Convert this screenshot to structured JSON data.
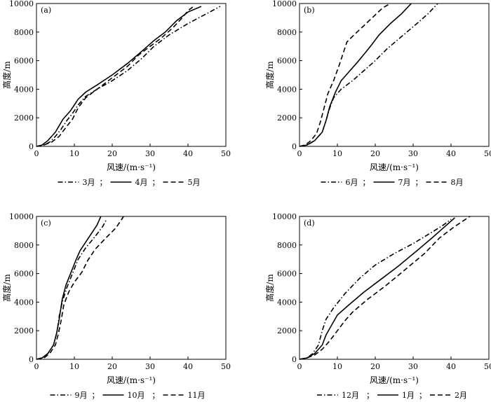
{
  "chart_data": [
    {
      "type": "line",
      "panel_label": "(a)",
      "xlabel": "风速/(m·s⁻¹)",
      "ylabel": "高度/m",
      "xlim": [
        0,
        50
      ],
      "ylim": [
        0,
        10000
      ],
      "x_ticks": [
        "0",
        "10",
        "20",
        "30",
        "40",
        "50"
      ],
      "y_ticks": [
        "0",
        "2000",
        "4000",
        "6000",
        "8000",
        "10000"
      ],
      "legend": "top-of-panel-below",
      "legend_separator": "；",
      "series": [
        {
          "name": "3月",
          "dash": "dashdot",
          "points": [
            [
              0,
              0
            ],
            [
              2,
              100
            ],
            [
              3.5,
              300
            ],
            [
              5,
              700
            ],
            [
              6.5,
              1200
            ],
            [
              8,
              1800
            ],
            [
              9.5,
              2300
            ],
            [
              11,
              2900
            ],
            [
              13,
              3500
            ],
            [
              16,
              4000
            ],
            [
              20,
              4600
            ],
            [
              24,
              5300
            ],
            [
              28,
              6200
            ],
            [
              31,
              7000
            ],
            [
              35,
              7800
            ],
            [
              40,
              8600
            ],
            [
              45,
              9300
            ],
            [
              48.5,
              9800
            ]
          ]
        },
        {
          "name": "4月",
          "dash": "solid",
          "points": [
            [
              0,
              0
            ],
            [
              1.5,
              100
            ],
            [
              3,
              400
            ],
            [
              5,
              1000
            ],
            [
              7,
              1900
            ],
            [
              9,
              2500
            ],
            [
              11,
              3300
            ],
            [
              13,
              3800
            ],
            [
              16,
              4300
            ],
            [
              20,
              5000
            ],
            [
              24,
              5800
            ],
            [
              28,
              6700
            ],
            [
              31,
              7400
            ],
            [
              34,
              8000
            ],
            [
              37,
              8800
            ],
            [
              40,
              9400
            ],
            [
              43.5,
              9800
            ]
          ]
        },
        {
          "name": "5月",
          "dash": "dashed",
          "points": [
            [
              0,
              0
            ],
            [
              2,
              100
            ],
            [
              4,
              300
            ],
            [
              6,
              700
            ],
            [
              8,
              1400
            ],
            [
              9.5,
              1900
            ],
            [
              11,
              2700
            ],
            [
              13,
              3400
            ],
            [
              16,
              4000
            ],
            [
              20,
              4800
            ],
            [
              24,
              5600
            ],
            [
              27,
              6400
            ],
            [
              30,
              7000
            ],
            [
              33,
              7600
            ],
            [
              36,
              8300
            ],
            [
              38.5,
              9000
            ],
            [
              40,
              9500
            ],
            [
              41.5,
              9800
            ]
          ]
        }
      ]
    },
    {
      "type": "line",
      "panel_label": "(b)",
      "xlabel": "风速/(m·s⁻¹)",
      "ylabel": "高度/m",
      "xlim": [
        0,
        50
      ],
      "ylim": [
        0,
        10000
      ],
      "x_ticks": [
        "0",
        "10",
        "20",
        "30",
        "40",
        "50"
      ],
      "y_ticks": [
        "0",
        "2000",
        "4000",
        "6000",
        "8000",
        "10000"
      ],
      "legend": "top-of-panel-below",
      "legend_separator": "；",
      "series": [
        {
          "name": "6月",
          "dash": "dashdot",
          "points": [
            [
              0,
              0
            ],
            [
              2,
              100
            ],
            [
              4,
              400
            ],
            [
              6,
              1000
            ],
            [
              7,
              1800
            ],
            [
              8,
              2700
            ],
            [
              9,
              3400
            ],
            [
              11,
              4000
            ],
            [
              14,
              4600
            ],
            [
              17,
              5300
            ],
            [
              20,
              6000
            ],
            [
              23,
              6800
            ],
            [
              27,
              7700
            ],
            [
              31,
              8600
            ],
            [
              34,
              9300
            ],
            [
              36.5,
              10000
            ]
          ]
        },
        {
          "name": "7月",
          "dash": "solid",
          "points": [
            [
              0,
              0
            ],
            [
              2,
              100
            ],
            [
              4,
              400
            ],
            [
              6,
              1000
            ],
            [
              7,
              1800
            ],
            [
              8,
              2800
            ],
            [
              9.5,
              3800
            ],
            [
              11,
              4600
            ],
            [
              13,
              5200
            ],
            [
              15,
              5800
            ],
            [
              17.5,
              6600
            ],
            [
              19,
              7100
            ],
            [
              21,
              7800
            ],
            [
              24,
              8600
            ],
            [
              27,
              9300
            ],
            [
              29.5,
              10000
            ]
          ]
        },
        {
          "name": "8月",
          "dash": "dashed",
          "points": [
            [
              0,
              0
            ],
            [
              1.5,
              100
            ],
            [
              3,
              400
            ],
            [
              4.5,
              900
            ],
            [
              5.5,
              1700
            ],
            [
              6.5,
              2700
            ],
            [
              7.5,
              3700
            ],
            [
              9,
              4600
            ],
            [
              10.5,
              5700
            ],
            [
              11.5,
              6500
            ],
            [
              12.5,
              7300
            ],
            [
              14,
              7700
            ],
            [
              16,
              8200
            ],
            [
              18,
              8700
            ],
            [
              20,
              9200
            ],
            [
              22,
              9700
            ],
            [
              24,
              10000
            ]
          ]
        }
      ]
    },
    {
      "type": "line",
      "panel_label": "(c)",
      "xlabel": "风速/(m·s⁻¹)",
      "ylabel": "高度/m",
      "xlim": [
        0,
        50
      ],
      "ylim": [
        0,
        10000
      ],
      "x_ticks": [
        "0",
        "10",
        "20",
        "30",
        "40",
        "50"
      ],
      "y_ticks": [
        "0",
        "2000",
        "4000",
        "6000",
        "8000",
        "10000"
      ],
      "legend": "top-of-panel-below",
      "legend_separator": "；",
      "series": [
        {
          "name": "9月",
          "dash": "dashdot",
          "points": [
            [
              0,
              0
            ],
            [
              1.5,
              100
            ],
            [
              3,
              400
            ],
            [
              4.5,
              1000
            ],
            [
              5.5,
              2000
            ],
            [
              6,
              3000
            ],
            [
              6.8,
              4000
            ],
            [
              8,
              5000
            ],
            [
              9.5,
              6000
            ],
            [
              11,
              7000
            ],
            [
              13,
              7800
            ],
            [
              15.5,
              8600
            ],
            [
              17.5,
              9300
            ],
            [
              18.5,
              9800
            ]
          ]
        },
        {
          "name": "10月",
          "dash": "solid",
          "points": [
            [
              0,
              0
            ],
            [
              1.5,
              100
            ],
            [
              3,
              400
            ],
            [
              4.5,
              1000
            ],
            [
              5.3,
              1800
            ],
            [
              6,
              2800
            ],
            [
              6.8,
              4200
            ],
            [
              7.8,
              5200
            ],
            [
              9,
              6000
            ],
            [
              10.5,
              7000
            ],
            [
              11.5,
              7600
            ],
            [
              13,
              8200
            ],
            [
              14.5,
              8800
            ],
            [
              16,
              9400
            ],
            [
              17,
              10000
            ]
          ]
        },
        {
          "name": "11月",
          "dash": "dashed",
          "points": [
            [
              0,
              0
            ],
            [
              2,
              100
            ],
            [
              3.5,
              400
            ],
            [
              5,
              1000
            ],
            [
              5.8,
              1800
            ],
            [
              6.5,
              2700
            ],
            [
              7.2,
              3800
            ],
            [
              8.5,
              4700
            ],
            [
              10,
              5400
            ],
            [
              12,
              6100
            ],
            [
              13.5,
              6900
            ],
            [
              15.5,
              7700
            ],
            [
              18,
              8400
            ],
            [
              21,
              9200
            ],
            [
              23,
              10000
            ]
          ]
        }
      ]
    },
    {
      "type": "line",
      "panel_label": "(d)",
      "xlabel": "风速/(m·s⁻¹)",
      "ylabel": "高度/m",
      "xlim": [
        0,
        50
      ],
      "ylim": [
        0,
        10000
      ],
      "x_ticks": [
        "0",
        "10",
        "20",
        "30",
        "40",
        "50"
      ],
      "y_ticks": [
        "0",
        "2000",
        "4000",
        "6000",
        "8000",
        "10000"
      ],
      "legend": "top-of-panel-below",
      "legend_separator": "；",
      "series": [
        {
          "name": "12月",
          "dash": "dashdot",
          "points": [
            [
              0,
              0
            ],
            [
              2,
              100
            ],
            [
              3.5,
              400
            ],
            [
              5,
              1000
            ],
            [
              6,
              2000
            ],
            [
              7,
              2800
            ],
            [
              9,
              3600
            ],
            [
              12,
              4600
            ],
            [
              16,
              5700
            ],
            [
              20,
              6600
            ],
            [
              25,
              7400
            ],
            [
              30,
              8100
            ],
            [
              35,
              8900
            ],
            [
              38,
              9400
            ],
            [
              40,
              9800
            ]
          ]
        },
        {
          "name": "1月",
          "dash": "solid",
          "points": [
            [
              0,
              0
            ],
            [
              2,
              100
            ],
            [
              4,
              400
            ],
            [
              6,
              1000
            ],
            [
              7,
              1700
            ],
            [
              8.5,
              2400
            ],
            [
              10,
              3100
            ],
            [
              13,
              3800
            ],
            [
              17,
              4700
            ],
            [
              21,
              5500
            ],
            [
              26,
              6500
            ],
            [
              31,
              7600
            ],
            [
              35,
              8500
            ],
            [
              38,
              9200
            ],
            [
              41,
              9900
            ]
          ]
        },
        {
          "name": "2月",
          "dash": "dashed",
          "points": [
            [
              0,
              0
            ],
            [
              2,
              100
            ],
            [
              4,
              300
            ],
            [
              6,
              700
            ],
            [
              8,
              1300
            ],
            [
              10,
              2000
            ],
            [
              12,
              2700
            ],
            [
              14,
              3300
            ],
            [
              18,
              4200
            ],
            [
              23,
              5200
            ],
            [
              28,
              6300
            ],
            [
              33,
              7400
            ],
            [
              37,
              8500
            ],
            [
              41,
              9300
            ],
            [
              45,
              10000
            ]
          ]
        }
      ]
    }
  ]
}
